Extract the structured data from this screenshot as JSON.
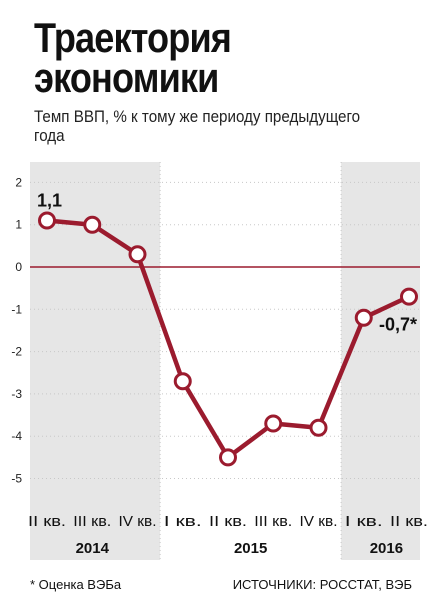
{
  "title_lines": [
    "Траектория",
    "экономики"
  ],
  "subtitle": "Темп ВВП, % к тому же периоду предыдущего года",
  "footnote": "* Оценка ВЭБа",
  "source": "ИСТОЧНИКИ: РОССТАТ, ВЭБ",
  "colors": {
    "line": "#9b1b2e",
    "marker_fill": "#ffffff",
    "shade": "#e6e6e6",
    "zero_line": "#9b1b2e",
    "grid": "#c8c8c8"
  },
  "chart_data": {
    "type": "line",
    "title": "Траектория экономики",
    "subtitle": "Темп ВВП, % к тому же периоду предыдущего года",
    "x": [
      "II кв.",
      "III кв.",
      "IV кв.",
      "I кв.",
      "II кв.",
      "III кв.",
      "IV кв.",
      "I кв.",
      "II кв."
    ],
    "years": [
      {
        "label": "2014",
        "start": 0,
        "end": 2,
        "shaded": true
      },
      {
        "label": "2015",
        "start": 3,
        "end": 6,
        "shaded": false
      },
      {
        "label": "2016",
        "start": 7,
        "end": 8,
        "shaded": true
      }
    ],
    "series": [
      {
        "values": [
          1.1,
          1.0,
          0.3,
          -2.7,
          -4.5,
          -3.7,
          -3.8,
          -1.2,
          -0.7
        ]
      }
    ],
    "annotations": [
      {
        "index": 0,
        "text": "1,1"
      },
      {
        "index": 8,
        "text": "-0,7*"
      }
    ],
    "y_ticks": [
      "2",
      "1",
      "0",
      "-1",
      "-2",
      "-3",
      "-4",
      "-5"
    ],
    "ylim": [
      -5,
      2
    ],
    "grid": true,
    "legend": "none"
  }
}
